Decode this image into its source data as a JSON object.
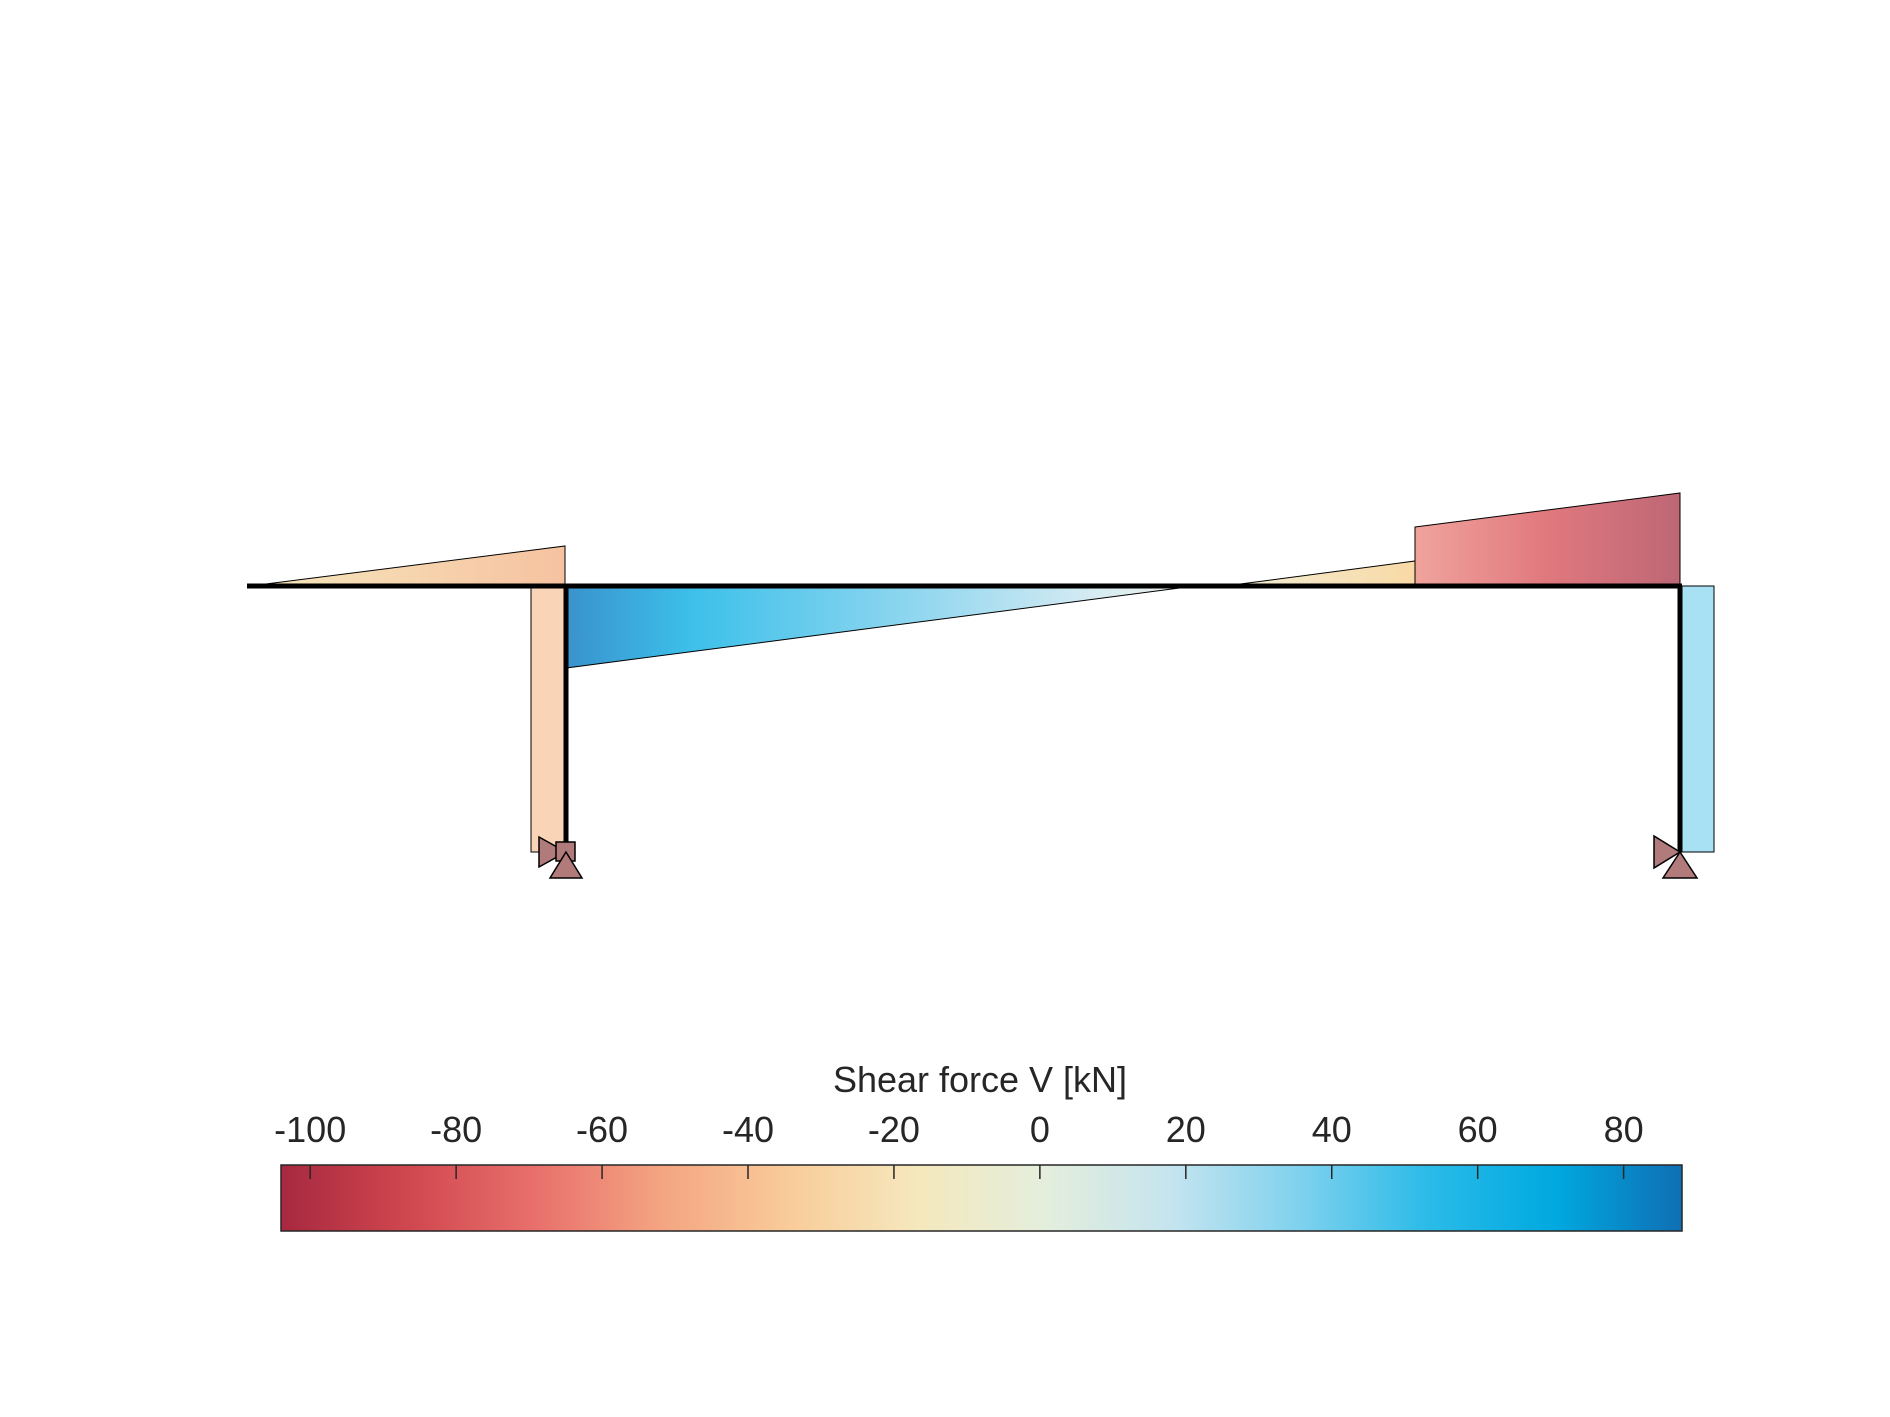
{
  "colorbar": {
    "title": "Shear force V [kN]",
    "min": -104,
    "max": 88,
    "orientation": "horizontal",
    "ticks": [
      {
        "value": -100,
        "label": "-100"
      },
      {
        "value": -80,
        "label": "-80"
      },
      {
        "value": -60,
        "label": "-60"
      },
      {
        "value": -40,
        "label": "-40"
      },
      {
        "value": -20,
        "label": "-20"
      },
      {
        "value": 0,
        "label": "0"
      },
      {
        "value": 20,
        "label": "20"
      },
      {
        "value": 40,
        "label": "40"
      },
      {
        "value": 60,
        "label": "60"
      },
      {
        "value": 80,
        "label": "80"
      }
    ],
    "colormap": [
      "#a7283f",
      "#d0474f",
      "#e8706c",
      "#f4a582",
      "#f9cc9a",
      "#f5e8bd",
      "#e4eedc",
      "#c4e4ef",
      "#7fd1ee",
      "#2bbbe8",
      "#00a9e0",
      "#0f6fb4"
    ]
  },
  "structure": {
    "members": [
      "beam",
      "left-column",
      "right-column"
    ],
    "supports": [
      {
        "type": "fixed-hinge",
        "location": "left-column-base"
      },
      {
        "type": "hinge",
        "location": "right-column-base"
      }
    ],
    "frame_color": "#000000",
    "support_color": "#b27b7b"
  },
  "diagram": {
    "segments": [
      {
        "member": "left-overhang",
        "shear_start": 0,
        "shear_end": -40
      },
      {
        "member": "main-span",
        "shear_start": 70,
        "shear_end": -15
      },
      {
        "member": "right-span",
        "shear_start": -65,
        "shear_end": -90
      },
      {
        "member": "left-column",
        "shear": -35
      },
      {
        "member": "right-column",
        "shear": 30
      }
    ]
  }
}
